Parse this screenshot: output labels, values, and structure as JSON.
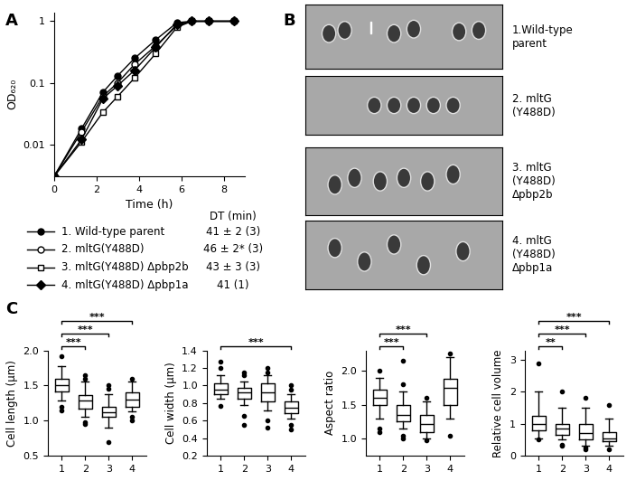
{
  "panel_labels": [
    "A",
    "B",
    "C"
  ],
  "chart_data": [
    {
      "type": "line",
      "xlabel": "Time (h)",
      "ylabel": "OD₆₂₀",
      "log": "y",
      "xlim": [
        0,
        9
      ],
      "xticks": [
        0,
        2,
        4,
        6,
        8
      ],
      "ylim": [
        0.003,
        1.4
      ],
      "yticks": [
        0.01,
        0.1,
        1
      ],
      "legend_header": "DT (min)",
      "x": [
        0,
        1.3,
        2.3,
        3.0,
        3.8,
        4.8,
        5.8,
        6.5,
        7.3,
        8.5
      ],
      "series": [
        {
          "name": "1. Wild-type parent",
          "dt": "41 ± 2 (3)",
          "color": "#000000",
          "marker": "filled_circle",
          "line_style": "solid",
          "values": [
            0.003,
            0.018,
            0.07,
            0.13,
            0.25,
            0.5,
            0.95,
            1.0,
            1.0,
            1.0
          ]
        },
        {
          "name": "2. mltG(Y488D)",
          "dt": "46 ± 2* (3)",
          "color": "#000000",
          "marker": "open_circle",
          "line_style": "solid",
          "values": [
            0.003,
            0.016,
            0.06,
            0.1,
            0.2,
            0.4,
            0.85,
            1.0,
            1.0,
            1.0
          ]
        },
        {
          "name": "3. mltG(Y488D) Δpbp2b",
          "dt": "43 ± 3 (3)",
          "color": "#000000",
          "marker": "open_square",
          "line_style": "solid",
          "values": [
            0.003,
            0.011,
            0.033,
            0.06,
            0.12,
            0.3,
            0.8,
            1.0,
            1.0,
            1.0
          ]
        },
        {
          "name": "4. mltG(Y488D) Δpbp1a",
          "dt": "41 (1)",
          "color": "#000000",
          "marker": "filled_diamond",
          "line_style": "solid",
          "values": [
            0.003,
            0.012,
            0.055,
            0.09,
            0.16,
            0.38,
            0.9,
            1.0,
            1.0,
            1.0
          ]
        }
      ]
    },
    {
      "type": "box",
      "ylabel": "Cell length (µm)",
      "categories": [
        "1",
        "2",
        "3",
        "4"
      ],
      "ylim": [
        0.5,
        2.0
      ],
      "yticks": [
        {
          "value": 0.5,
          "label": "0.5"
        },
        {
          "value": 1.0,
          "label": "1.0"
        },
        {
          "value": 1.5,
          "label": "1.5"
        },
        {
          "value": 2.0,
          "label": "2.0"
        }
      ],
      "stats": [
        {
          "whislo": 1.28,
          "q1": 1.42,
          "med": 1.5,
          "q3": 1.6,
          "whishi": 1.78,
          "fliers": [
            1.92,
            1.2,
            1.15
          ]
        },
        {
          "whislo": 1.05,
          "q1": 1.17,
          "med": 1.28,
          "q3": 1.36,
          "whishi": 1.55,
          "fliers": [
            1.6,
            1.65,
            0.95,
            0.98
          ]
        },
        {
          "whislo": 0.9,
          "q1": 1.05,
          "med": 1.12,
          "q3": 1.2,
          "whishi": 1.38,
          "fliers": [
            1.45,
            1.5,
            0.7
          ]
        },
        {
          "whislo": 1.13,
          "q1": 1.2,
          "med": 1.3,
          "q3": 1.4,
          "whishi": 1.55,
          "fliers": [
            1.6,
            1.05,
            1.0
          ]
        }
      ],
      "significance": [
        {
          "pair": [
            "1",
            "2"
          ],
          "label": "***"
        },
        {
          "pair": [
            "1",
            "3"
          ],
          "label": "***"
        },
        {
          "pair": [
            "1",
            "4"
          ],
          "label": "***"
        }
      ]
    },
    {
      "type": "box",
      "ylabel": "Cell width (µm)",
      "categories": [
        "1",
        "2",
        "3",
        "4"
      ],
      "ylim": [
        0.2,
        1.4
      ],
      "yticks": [
        {
          "value": 0.2,
          "label": "0.2"
        },
        {
          "value": 0.4,
          "label": "0.4"
        },
        {
          "value": 0.6,
          "label": "0.6"
        },
        {
          "value": 0.8,
          "label": "0.8"
        },
        {
          "value": 1.0,
          "label": "1.0"
        },
        {
          "value": 1.2,
          "label": "1.2"
        },
        {
          "value": 1.4,
          "label": "1.4"
        }
      ],
      "stats": [
        {
          "whislo": 0.85,
          "q1": 0.9,
          "med": 0.95,
          "q3": 1.02,
          "whishi": 1.12,
          "fliers": [
            1.2,
            1.27,
            0.77
          ]
        },
        {
          "whislo": 0.78,
          "q1": 0.85,
          "med": 0.92,
          "q3": 0.97,
          "whishi": 1.05,
          "fliers": [
            1.12,
            1.15,
            0.65,
            0.55
          ]
        },
        {
          "whislo": 0.72,
          "q1": 0.82,
          "med": 0.92,
          "q3": 1.02,
          "whishi": 1.12,
          "fliers": [
            1.15,
            1.2,
            0.6,
            0.52
          ]
        },
        {
          "whislo": 0.62,
          "q1": 0.68,
          "med": 0.75,
          "q3": 0.82,
          "whishi": 0.9,
          "fliers": [
            0.95,
            1.0,
            0.5,
            0.55
          ]
        }
      ],
      "significance": [
        {
          "pair": [
            "1",
            "4"
          ],
          "label": "***"
        }
      ]
    },
    {
      "type": "box",
      "ylabel": "Aspect ratio",
      "categories": [
        "1",
        "2",
        "3",
        "4"
      ],
      "ylim": [
        0.75,
        2.3
      ],
      "yticks": [
        {
          "value": 1.0,
          "label": "1.0"
        },
        {
          "value": 1.5,
          "label": "1.5"
        },
        {
          "value": 2.0,
          "label": "2.0"
        }
      ],
      "stats": [
        {
          "whislo": 1.3,
          "q1": 1.5,
          "med": 1.6,
          "q3": 1.72,
          "whishi": 1.9,
          "fliers": [
            2.0,
            1.1,
            1.15
          ]
        },
        {
          "whislo": 1.15,
          "q1": 1.25,
          "med": 1.35,
          "q3": 1.5,
          "whishi": 1.7,
          "fliers": [
            1.8,
            2.15,
            1.0,
            1.05
          ]
        },
        {
          "whislo": 1.0,
          "q1": 1.1,
          "med": 1.22,
          "q3": 1.35,
          "whishi": 1.55,
          "fliers": [
            1.6,
            0.98
          ]
        },
        {
          "whislo": 1.3,
          "q1": 1.5,
          "med": 1.75,
          "q3": 1.88,
          "whishi": 2.2,
          "fliers": [
            2.25,
            1.05
          ]
        }
      ],
      "significance": [
        {
          "pair": [
            "1",
            "2"
          ],
          "label": "***"
        },
        {
          "pair": [
            "1",
            "3"
          ],
          "label": "***"
        }
      ]
    },
    {
      "type": "box",
      "ylabel": "Relative cell volume",
      "categories": [
        "1",
        "2",
        "3",
        "4"
      ],
      "ylim": [
        0,
        3.3
      ],
      "yticks": [
        0,
        1,
        2,
        3
      ],
      "stats": [
        {
          "whislo": 0.55,
          "q1": 0.8,
          "med": 1.0,
          "q3": 1.25,
          "whishi": 2.0,
          "fliers": [
            2.9,
            0.5
          ]
        },
        {
          "whislo": 0.5,
          "q1": 0.65,
          "med": 0.85,
          "q3": 1.0,
          "whishi": 1.5,
          "fliers": [
            2.0,
            0.35,
            0.3
          ]
        },
        {
          "whislo": 0.3,
          "q1": 0.5,
          "med": 0.72,
          "q3": 1.0,
          "whishi": 1.5,
          "fliers": [
            1.8,
            0.2,
            0.25
          ]
        },
        {
          "whislo": 0.3,
          "q1": 0.45,
          "med": 0.55,
          "q3": 0.75,
          "whishi": 1.15,
          "fliers": [
            1.6,
            0.2
          ]
        }
      ],
      "significance": [
        {
          "pair": [
            "1",
            "2"
          ],
          "label": "**"
        },
        {
          "pair": [
            "1",
            "3"
          ],
          "label": "***"
        },
        {
          "pair": [
            "1",
            "4"
          ],
          "label": "***"
        }
      ]
    }
  ],
  "micrographs": {
    "labels": [
      "1.Wild-type\nparent",
      "2. mltG\n(Y488D)",
      "3. mltG\n(Y488D)\nΔpbp2b",
      "4. mltG\n(Y488D)\nΔpbp1a"
    ]
  }
}
